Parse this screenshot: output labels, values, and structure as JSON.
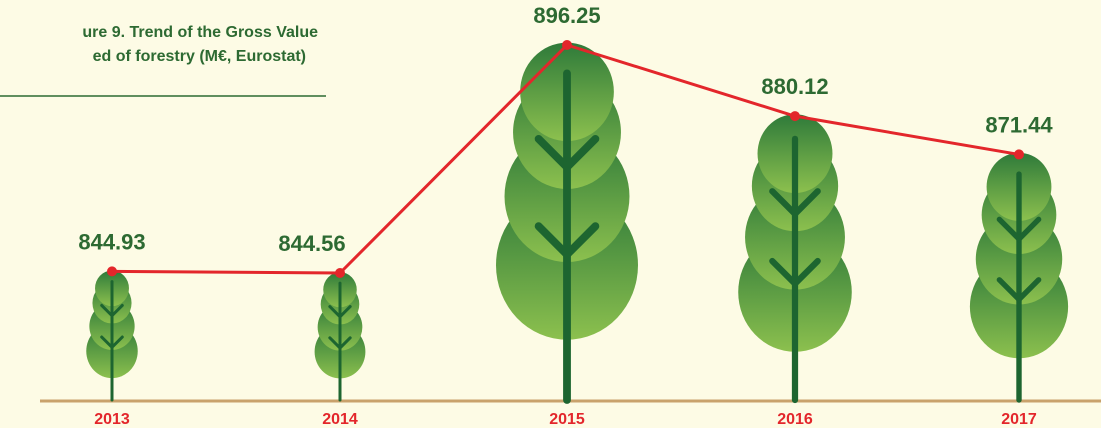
{
  "chart_data": {
    "type": "line",
    "title": [
      "ure 9. Trend of the Gross Value",
      "ed of forestry (M€, Eurostat)"
    ],
    "categories": [
      "2013",
      "2014",
      "2015",
      "2016",
      "2017"
    ],
    "values": [
      844.93,
      844.56,
      896.25,
      880.12,
      871.44
    ],
    "color": "#e3262b"
  }
}
